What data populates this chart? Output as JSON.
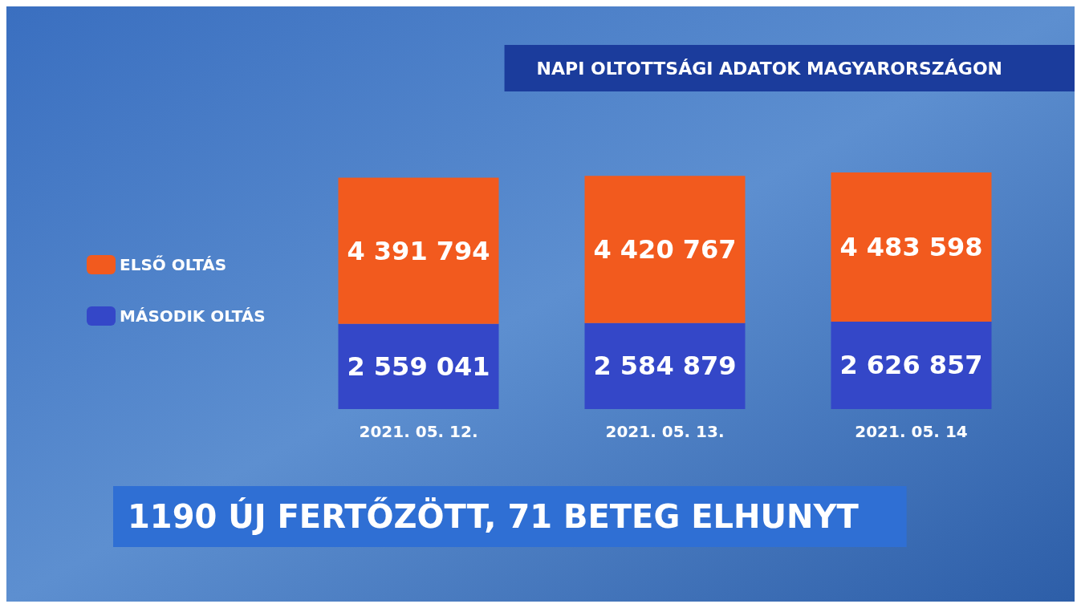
{
  "chart_data": {
    "type": "bar",
    "title": "NAPI OLTOTTSÁGI ADATOK MAGYARORSZÁGON",
    "annotations": [
      "1190 ÚJ FERTŐZÖTT, 71 BETEG ELHUNYT"
    ],
    "categories": [
      "2021. 05. 12.",
      "2021. 05. 13.",
      "2021. 05. 14"
    ],
    "stacked": true,
    "data_labels": true,
    "legend": "left",
    "series": [
      {
        "name": "MÁSODIK OLTÁS",
        "color": "#3447c8",
        "values": [
          2559041,
          2584879,
          2626857
        ]
      },
      {
        "name": "ELSŐ OLTÁS",
        "color": "#f25a1e",
        "values": [
          4391794,
          4420767,
          4483598
        ]
      }
    ]
  }
}
